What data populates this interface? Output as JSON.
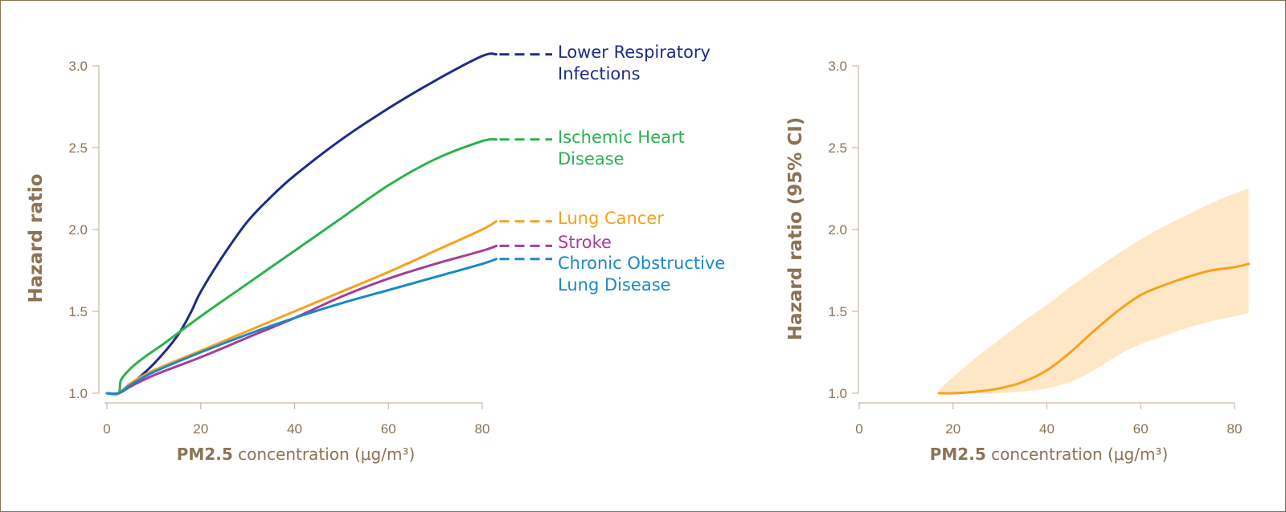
{
  "chart_data": [
    {
      "type": "line",
      "xlabel_bold": "PM2.5",
      "xlabel_rest": " concentration (μg/m³)",
      "ylabel": "Hazard ratio",
      "xlim": [
        0,
        80
      ],
      "ylim": [
        1.0,
        3.0
      ],
      "x_ticks": [
        "0",
        "20",
        "40",
        "60",
        "80"
      ],
      "y_ticks": [
        "1.0",
        "1.5",
        "2.0",
        "2.5",
        "3.0"
      ],
      "series": [
        {
          "name_lines": [
            "Lower Respiratory",
            "Infections"
          ],
          "color": "#1f2a8a",
          "points": [
            [
              0,
              1.0
            ],
            [
              2.5,
              1.0
            ],
            [
              5,
              1.05
            ],
            [
              10,
              1.18
            ],
            [
              15,
              1.35
            ],
            [
              18,
              1.5
            ],
            [
              20,
              1.62
            ],
            [
              25,
              1.85
            ],
            [
              30,
              2.05
            ],
            [
              35,
              2.2
            ],
            [
              40,
              2.33
            ],
            [
              50,
              2.55
            ],
            [
              60,
              2.74
            ],
            [
              70,
              2.91
            ],
            [
              80,
              3.06
            ],
            [
              83,
              3.07
            ]
          ]
        },
        {
          "name_lines": [
            "Ischemic Heart",
            "Disease"
          ],
          "color": "#2bb24c",
          "points": [
            [
              0,
              1.0
            ],
            [
              2.5,
              1.0
            ],
            [
              3,
              1.08
            ],
            [
              5,
              1.15
            ],
            [
              8,
              1.22
            ],
            [
              12,
              1.3
            ],
            [
              20,
              1.47
            ],
            [
              30,
              1.67
            ],
            [
              40,
              1.87
            ],
            [
              50,
              2.07
            ],
            [
              60,
              2.27
            ],
            [
              70,
              2.43
            ],
            [
              80,
              2.54
            ],
            [
              83,
              2.55
            ]
          ]
        },
        {
          "name_lines": [
            "Lung Cancer"
          ],
          "color": "#f7a21b",
          "points": [
            [
              0,
              1.0
            ],
            [
              2.5,
              1.0
            ],
            [
              5,
              1.06
            ],
            [
              10,
              1.14
            ],
            [
              20,
              1.26
            ],
            [
              30,
              1.38
            ],
            [
              40,
              1.5
            ],
            [
              50,
              1.62
            ],
            [
              60,
              1.74
            ],
            [
              70,
              1.87
            ],
            [
              80,
              2.0
            ],
            [
              83,
              2.05
            ]
          ]
        },
        {
          "name_lines": [
            "Stroke"
          ],
          "color": "#a73d98",
          "points": [
            [
              0,
              1.0
            ],
            [
              2.5,
              1.0
            ],
            [
              5,
              1.04
            ],
            [
              10,
              1.11
            ],
            [
              20,
              1.22
            ],
            [
              30,
              1.34
            ],
            [
              40,
              1.46
            ],
            [
              50,
              1.59
            ],
            [
              60,
              1.7
            ],
            [
              70,
              1.79
            ],
            [
              80,
              1.87
            ],
            [
              83,
              1.9
            ]
          ]
        },
        {
          "name_lines": [
            "Chronic Obstructive",
            "Lung Disease"
          ],
          "color": "#1a88c9",
          "points": [
            [
              0,
              1.0
            ],
            [
              2.5,
              1.0
            ],
            [
              5,
              1.05
            ],
            [
              10,
              1.13
            ],
            [
              20,
              1.25
            ],
            [
              30,
              1.36
            ],
            [
              40,
              1.46
            ],
            [
              50,
              1.55
            ],
            [
              60,
              1.63
            ],
            [
              70,
              1.71
            ],
            [
              80,
              1.79
            ],
            [
              83,
              1.82
            ]
          ]
        }
      ]
    },
    {
      "type": "area",
      "xlabel_bold": "PM2.5",
      "xlabel_rest": " concentration (μg/m³)",
      "ylabel": "Hazard ratio (95% CI)",
      "xlim": [
        0,
        80
      ],
      "ylim": [
        1.0,
        3.0
      ],
      "x_ticks": [
        "0",
        "20",
        "40",
        "60",
        "80"
      ],
      "y_ticks": [
        "1.0",
        "1.5",
        "2.0",
        "2.5",
        "3.0"
      ],
      "line_color": "#f7a21b",
      "band_color": "#fde7c6",
      "x": [
        17,
        20,
        25,
        30,
        35,
        40,
        45,
        50,
        55,
        60,
        65,
        70,
        75,
        80,
        83
      ],
      "estimate": [
        1.0,
        1.0,
        1.01,
        1.03,
        1.07,
        1.14,
        1.25,
        1.38,
        1.5,
        1.6,
        1.66,
        1.71,
        1.75,
        1.77,
        1.79
      ],
      "lower": [
        1.0,
        1.0,
        1.0,
        1.0,
        1.01,
        1.03,
        1.07,
        1.14,
        1.23,
        1.3,
        1.35,
        1.4,
        1.44,
        1.47,
        1.49
      ],
      "upper": [
        1.02,
        1.1,
        1.22,
        1.33,
        1.44,
        1.54,
        1.65,
        1.75,
        1.85,
        1.94,
        2.02,
        2.09,
        2.16,
        2.22,
        2.25
      ]
    }
  ]
}
